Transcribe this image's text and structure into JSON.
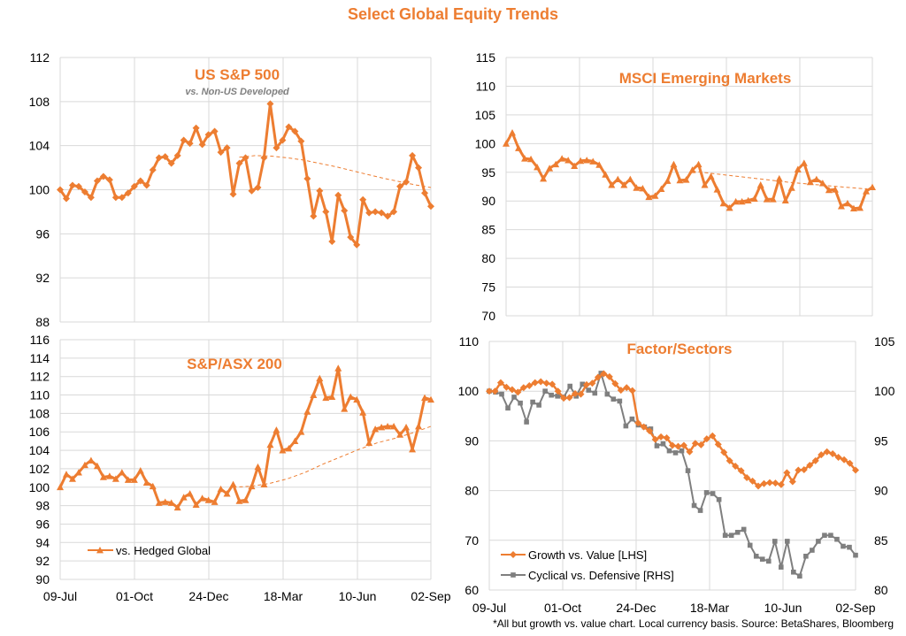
{
  "page": {
    "title": "Select Global Equity Trends",
    "footnote": "*All but growth vs. value chart. Local currency basis. Source: BetaShares, Bloomberg"
  },
  "colors": {
    "orange": "#ED7D31",
    "gray": "#7F7F7F",
    "grid": "#D9D9D9"
  },
  "chart_data": [
    {
      "id": "sp500",
      "type": "line",
      "title": "US S&P 500",
      "subtitle": "vs. Non-US Developed",
      "ylim": [
        88,
        112
      ],
      "yticks": [
        88,
        92,
        96,
        100,
        104,
        108,
        112
      ],
      "xticks": [
        "09-Jul",
        "01-Oct",
        "24-Dec",
        "18-Mar",
        "10-Jun",
        "02-Sep"
      ],
      "series": [
        {
          "marker": "diamond",
          "values": [
            100,
            99.2,
            100.4,
            100.3,
            99.8,
            99.3,
            100.8,
            101.2,
            100.9,
            99.3,
            99.3,
            99.7,
            100.3,
            100.8,
            100.4,
            101.8,
            102.9,
            103.0,
            102.4,
            103.1,
            104.5,
            104.2,
            105.6,
            104.1,
            105.0,
            105.3,
            103.4,
            103.8,
            99.6,
            102.4,
            102.9,
            99.9,
            100.2,
            102.9,
            107.8,
            103.8,
            104.5,
            105.7,
            105.3,
            104.4,
            101.0,
            97.6,
            99.9,
            98.0,
            95.3,
            99.5,
            98.1,
            95.7,
            95.0,
            99.1,
            97.9,
            98.0,
            97.9,
            97.6,
            98.0,
            100.3,
            100.7,
            103.1,
            102.0,
            99.7,
            98.5
          ]
        },
        {
          "style": "dashed",
          "values": [
            102.95,
            103.1,
            103.05,
            102.9,
            102.7,
            102.4,
            102.1,
            101.75,
            101.4,
            101.05,
            100.75,
            100.45,
            100.2
          ]
        }
      ]
    },
    {
      "id": "msci-em",
      "type": "line",
      "title": "MSCI Emerging Markets",
      "ylim": [
        70,
        115
      ],
      "yticks": [
        70,
        75,
        80,
        85,
        90,
        95,
        100,
        105,
        110,
        115
      ],
      "series": [
        {
          "marker": "triangle",
          "values": [
            100,
            101.9,
            99.2,
            97.4,
            97.3,
            95.9,
            93.9,
            95.7,
            96.4,
            97.4,
            97.1,
            96.1,
            97.0,
            97.1,
            96.9,
            96.3,
            94.6,
            92.8,
            93.8,
            92.8,
            93.8,
            92.3,
            92.2,
            90.7,
            90.9,
            92.1,
            93.5,
            96.4,
            93.6,
            93.7,
            95.4,
            96.4,
            92.8,
            94.3,
            92.0,
            89.6,
            88.8,
            89.9,
            89.9,
            90.1,
            90.4,
            92.8,
            90.3,
            90.3,
            93.9,
            90.1,
            92.3,
            95.5,
            96.6,
            93.3,
            93.8,
            93.1,
            91.9,
            92.0,
            89.1,
            89.6,
            88.7,
            88.8,
            91.7,
            92.4
          ]
        },
        {
          "style": "dashed",
          "values": [
            95.2,
            94.8,
            94.4,
            94.0,
            93.6,
            93.2,
            92.9,
            92.6,
            92.3,
            92.0
          ]
        }
      ]
    },
    {
      "id": "asx200",
      "type": "line",
      "title": "S&P/ASX 200",
      "ylim": [
        90,
        116
      ],
      "yticks": [
        90,
        92,
        94,
        96,
        98,
        100,
        102,
        104,
        106,
        108,
        110,
        112,
        114,
        116
      ],
      "xticks": [
        "09-Jul",
        "01-Oct",
        "24-Dec",
        "18-Mar",
        "10-Jun",
        "02-Sep"
      ],
      "legend": [
        "vs. Hedged Global"
      ],
      "series": [
        {
          "marker": "triangle",
          "values": [
            100.0,
            101.4,
            100.9,
            101.6,
            102.4,
            102.9,
            102.3,
            101.1,
            101.2,
            100.9,
            101.6,
            100.8,
            100.8,
            101.8,
            100.5,
            100.1,
            98.3,
            98.4,
            98.3,
            97.8,
            98.9,
            99.3,
            98.1,
            98.8,
            98.6,
            98.4,
            99.8,
            99.3,
            100.3,
            98.5,
            98.6,
            100.1,
            102.2,
            100.3,
            104.6,
            106.2,
            104.0,
            104.2,
            105.0,
            106.0,
            108.2,
            110.0,
            111.8,
            109.7,
            109.8,
            112.9,
            108.5,
            109.8,
            109.5,
            108.1,
            104.8,
            106.3,
            106.5,
            106.6,
            106.6,
            105.7,
            106.5,
            104.1,
            106.6,
            109.7,
            109.5
          ]
        },
        {
          "style": "dashed",
          "values": [
            100.0,
            100.1,
            100.4,
            100.9,
            101.6,
            102.5,
            103.3,
            104.1,
            104.8,
            105.3,
            105.9,
            106.6
          ]
        }
      ]
    },
    {
      "id": "factor-sectors",
      "type": "line",
      "title": "Factor/Sectors",
      "ylim_left": [
        60,
        110
      ],
      "yticks_left": [
        60,
        70,
        80,
        90,
        100,
        110
      ],
      "ylim_right": [
        80,
        105
      ],
      "yticks_right": [
        80,
        85,
        90,
        95,
        100,
        105
      ],
      "xticks": [
        "09-Jul",
        "01-Oct",
        "24-Dec",
        "18-Mar",
        "10-Jun",
        "02-Sep"
      ],
      "legend": [
        "Growth vs. Value [LHS]",
        "Cyclical vs. Defensive [RHS]"
      ],
      "series": [
        {
          "name": "Growth vs. Value [LHS]",
          "axis": "left",
          "marker": "diamond",
          "values": [
            100.0,
            100.0,
            101.7,
            100.8,
            100.3,
            99.8,
            100.7,
            101.1,
            101.7,
            101.9,
            101.6,
            101.4,
            100.0,
            98.6,
            98.7,
            99.5,
            99.4,
            101.3,
            101.6,
            102.8,
            103.5,
            102.9,
            101.5,
            100.2,
            100.7,
            100.1,
            93.6,
            92.8,
            92.0,
            90.3,
            90.8,
            90.6,
            89.1,
            88.9,
            89.1,
            87.8,
            89.5,
            89.2,
            90.4,
            91.0,
            89.3,
            87.7,
            86.0,
            84.9,
            84.0,
            82.6,
            81.9,
            80.9,
            81.4,
            81.6,
            81.5,
            81.2,
            83.6,
            81.8,
            84.1,
            84.2,
            85.1,
            86.0,
            87.2,
            87.8,
            87.4,
            86.7,
            86.2,
            85.5,
            84.1
          ]
        },
        {
          "name": "Cyclical vs. Defensive [RHS]",
          "axis": "right",
          "marker": "square",
          "values": [
            100.0,
            99.9,
            99.7,
            98.3,
            99.4,
            98.8,
            96.9,
            98.9,
            98.6,
            100.0,
            99.6,
            99.5,
            99.4,
            100.5,
            99.5,
            100.7,
            100.1,
            99.8,
            101.8,
            99.7,
            99.2,
            99.0,
            96.5,
            97.2,
            96.6,
            96.4,
            96.2,
            94.5,
            94.7,
            94.0,
            93.8,
            94.0,
            92.0,
            88.5,
            88.0,
            89.8,
            89.7,
            89.1,
            85.5,
            85.5,
            85.8,
            86.1,
            84.5,
            83.4,
            83.1,
            82.9,
            84.9,
            82.3,
            84.9,
            81.8,
            81.4,
            83.4,
            84.0,
            84.9,
            85.5,
            85.5,
            85.1,
            84.4,
            84.3,
            83.5
          ]
        }
      ]
    }
  ]
}
